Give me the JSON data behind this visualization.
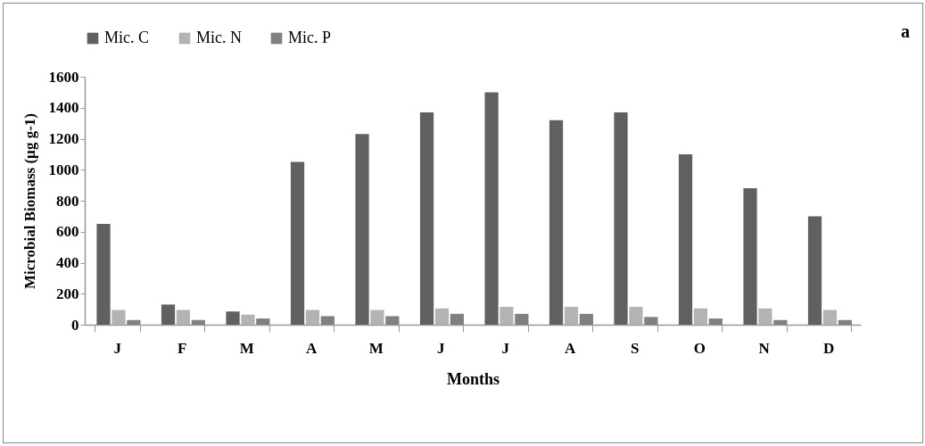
{
  "chart_data": {
    "type": "bar",
    "xlabel": "Months",
    "ylabel": "Microbial Biomass (µg g-1)",
    "annotations": [
      "a"
    ],
    "categories": [
      "J",
      "F",
      "M",
      "A",
      "M",
      "J",
      "J",
      "A",
      "S",
      "O",
      "N",
      "D"
    ],
    "series": [
      {
        "name": "Mic. C",
        "color": "#606060",
        "values": [
          650,
          130,
          85,
          1050,
          1230,
          1370,
          1500,
          1320,
          1370,
          1100,
          880,
          700
        ]
      },
      {
        "name": "Mic. N",
        "color": "#b3b3b3",
        "values": [
          95,
          95,
          65,
          95,
          95,
          105,
          115,
          115,
          115,
          105,
          105,
          95
        ]
      },
      {
        "name": "Mic. P",
        "color": "#808080",
        "values": [
          30,
          30,
          40,
          55,
          55,
          70,
          70,
          70,
          50,
          40,
          30,
          30
        ]
      }
    ],
    "ylim": [
      0,
      1600
    ],
    "yticks": [
      0,
      200,
      400,
      600,
      800,
      1000,
      1200,
      1400,
      1600
    ],
    "grid": false,
    "legend": "top"
  }
}
